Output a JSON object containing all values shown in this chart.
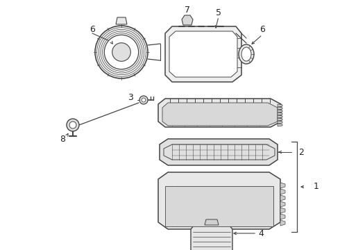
{
  "background_color": "#ffffff",
  "line_color": "#444444",
  "label_color": "#222222",
  "figsize": [
    4.9,
    3.6
  ],
  "dpi": 100,
  "label_fontsize": 9
}
